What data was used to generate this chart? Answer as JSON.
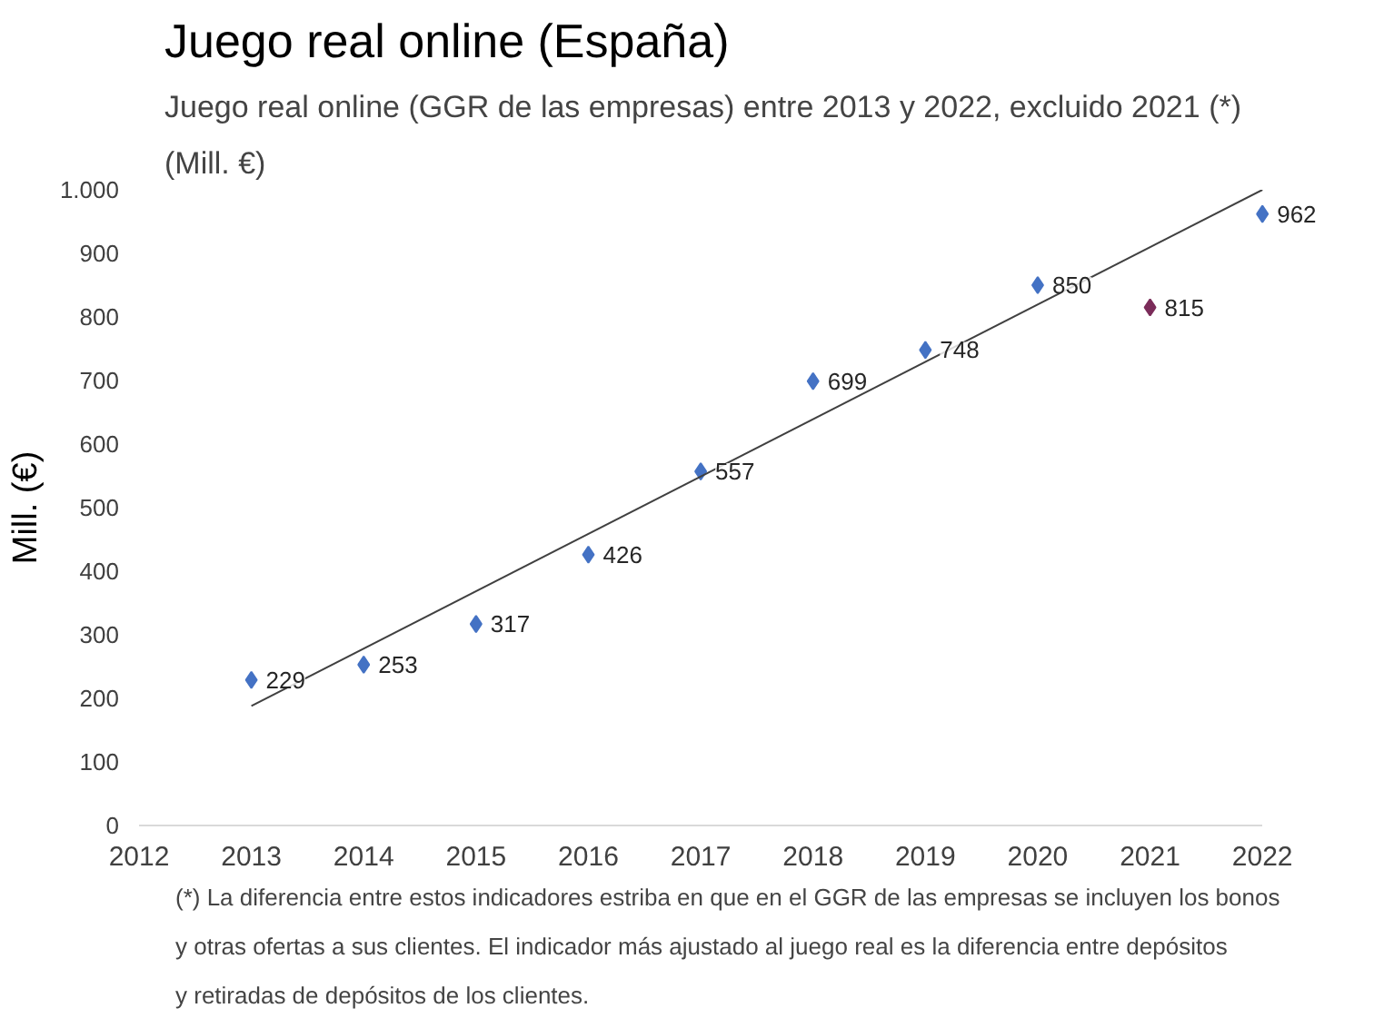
{
  "chart_data": {
    "type": "scatter",
    "title": "Juego real online (España)",
    "subtitle": "Juego real online (GGR de las empresas) entre 2013 y 2022, excluido 2021 (*)",
    "ylabel": "Mill. (€)",
    "series": [
      {
        "marker": "diamond",
        "color": "#4472c4",
        "x": [
          2013,
          2014,
          2015,
          2016,
          2017,
          2018,
          2019,
          2020,
          2022
        ],
        "values": [
          229,
          253,
          317,
          426,
          557,
          699,
          748,
          850,
          962
        ]
      },
      {
        "marker": "diamond",
        "color": "#7b2c5a",
        "x": [
          2021
        ],
        "values": [
          815
        ]
      },
      {
        "type": "line",
        "color": "#404040",
        "x": [
          2013,
          2022
        ],
        "values": [
          188,
          1000
        ],
        "data_labels": false
      }
    ],
    "data_labels": true,
    "grid": false,
    "xlim": [
      2012,
      2022
    ],
    "xticks": [
      2012,
      2013,
      2014,
      2015,
      2016,
      2017,
      2018,
      2019,
      2020,
      2021,
      2022
    ],
    "ylim": [
      0,
      1000
    ],
    "yticks": [
      0,
      100,
      200,
      300,
      400,
      500,
      600,
      700,
      800,
      900,
      {
        "value": 1000,
        "label": "1.000"
      }
    ],
    "annotations": [
      "(Mill. €)",
      "(*) La diferencia entre estos indicadores estriba en que en el GGR de las empresas se incluyen los bonos y otras ofertas a sus clientes. El indicador más ajustado al juego real es la diferencia entre depósitos y retiradas de depósitos de los clientes."
    ]
  }
}
